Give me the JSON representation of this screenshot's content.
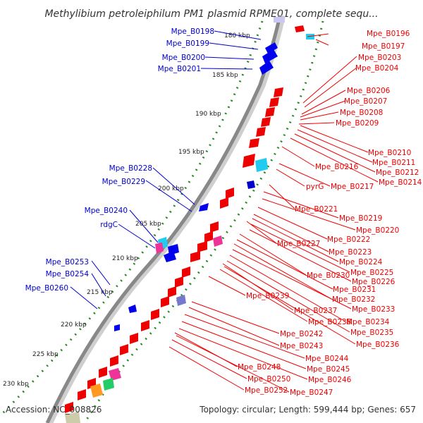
{
  "title": "Methylibium petroleiphilum PM1 plasmid RPME01, complete sequ...",
  "accession": "Accession: NC_008826",
  "summary": "Topology: circular; Length: 599,444 bp; Genes: 657",
  "colors": {
    "forward": "#0000ee",
    "reverse": "#ee0000",
    "backbone": "#888888",
    "tick": "#228b22"
  },
  "kbp_ticks": [
    "180 kbp",
    "185 kbp",
    "190 kbp",
    "195 kbp",
    "200 kbp",
    "205 kbp",
    "210 kbp",
    "215 kbp",
    "220 kbp",
    "225 kbp",
    "230 kbp"
  ],
  "forward_genes": [
    "Mpe_B0198",
    "Mpe_B0199",
    "Mpe_B0200",
    "Mpe_B0201",
    "Mpe_B0228",
    "Mpe_B0229",
    "Mpe_B0240",
    "rdgC",
    "Mpe_B0253",
    "Mpe_B0254",
    "Mpe_B0260"
  ],
  "reverse_genes": [
    "Mpe_B0196",
    "Mpe_B0197",
    "Mpe_B0203",
    "Mpe_B0204",
    "Mpe_B0206",
    "Mpe_B0207",
    "Mpe_B0208",
    "Mpe_B0209",
    "Mpe_B0210",
    "Mpe_B0211",
    "Mpe_B0212",
    "Mpe_B0214",
    "Mpe_B0216",
    "pyrG",
    "Mpe_B0217",
    "Mpe_B0221",
    "Mpe_B0219",
    "Mpe_B0220",
    "Mpe_B0222",
    "Mpe_B0227",
    "Mpe_B0223",
    "Mpe_B0224",
    "Mpe_B0225",
    "Mpe_B0230",
    "Mpe_B0226",
    "Mpe_B0231",
    "Mpe_B0232",
    "Mpe_B0239",
    "Mpe_B0233",
    "Mpe_B0237",
    "Mpe_B0234",
    "Mpe_B0238",
    "Mpe_B0235",
    "Mpe_B0236",
    "Mpe_B0242",
    "Mpe_B0243",
    "Mpe_B0244",
    "Mpe_B0245",
    "Mpe_B0248",
    "Mpe_B0246",
    "Mpe_B0250",
    "Mpe_B0252",
    "Mpe_B0247"
  ]
}
